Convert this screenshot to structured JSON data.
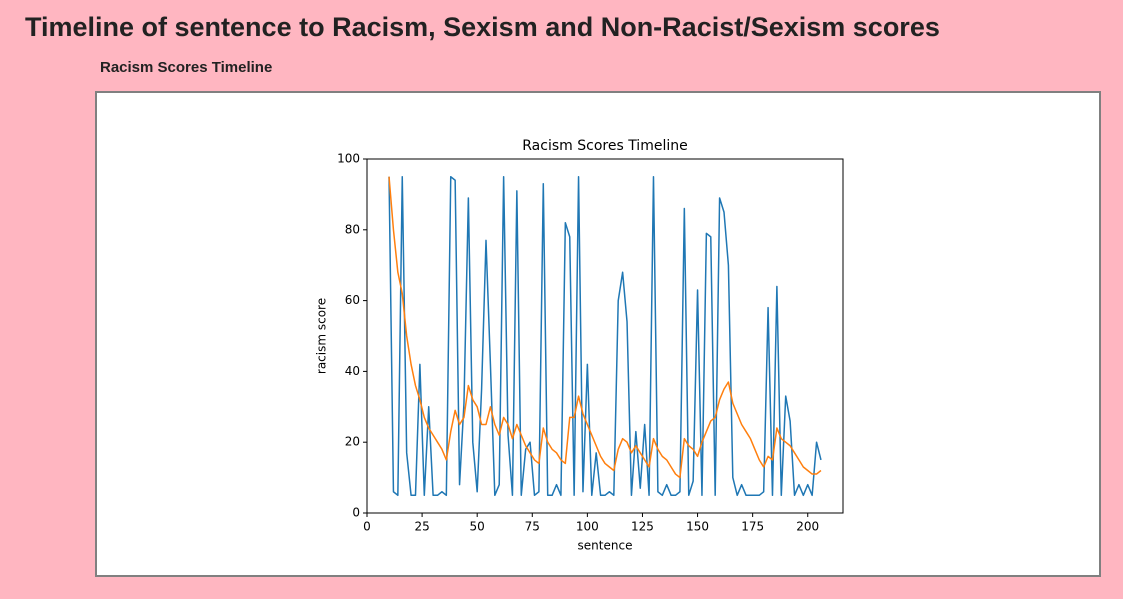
{
  "header": {
    "title": "Timeline of sentence to Racism, Sexism and Non-Racist/Sexism scores",
    "subtitle": "Racism Scores Timeline"
  },
  "chart_data": {
    "type": "line",
    "title": "Racism Scores Timeline",
    "x_label": "sentence",
    "y_label": "racism score",
    "x": [
      10,
      12,
      14,
      16,
      18,
      20,
      22,
      24,
      26,
      28,
      30,
      32,
      34,
      36,
      38,
      40,
      42,
      44,
      46,
      48,
      50,
      52,
      54,
      56,
      58,
      60,
      62,
      64,
      66,
      68,
      70,
      72,
      74,
      76,
      78,
      80,
      82,
      84,
      86,
      88,
      90,
      92,
      94,
      96,
      98,
      100,
      102,
      104,
      106,
      108,
      110,
      112,
      114,
      116,
      118,
      120,
      122,
      124,
      126,
      128,
      130,
      132,
      134,
      136,
      138,
      140,
      142,
      144,
      146,
      148,
      150,
      152,
      154,
      156,
      158,
      160,
      162,
      164,
      166,
      168,
      170,
      172,
      174,
      176,
      178,
      180,
      182,
      184,
      186,
      188,
      190,
      192,
      194,
      196,
      198,
      200,
      202,
      204,
      206
    ],
    "series": [
      {
        "color": "#1f77b4",
        "values": [
          95,
          6,
          5,
          95,
          17,
          5,
          5,
          42,
          5,
          30,
          5,
          5,
          6,
          5,
          95,
          94,
          8,
          31,
          89,
          20,
          6,
          35,
          77,
          42,
          5,
          8,
          95,
          22,
          5,
          91,
          5,
          18,
          20,
          5,
          6,
          93,
          5,
          5,
          8,
          5,
          82,
          78,
          5,
          95,
          6,
          42,
          5,
          17,
          5,
          5,
          6,
          5,
          60,
          68,
          54,
          5,
          23,
          7,
          25,
          5,
          95,
          6,
          5,
          8,
          5,
          5,
          6,
          86,
          5,
          9,
          63,
          5,
          79,
          78,
          5,
          89,
          85,
          70,
          10,
          5,
          8,
          5,
          5,
          5,
          5,
          6,
          58,
          5,
          64,
          5,
          33,
          26,
          5,
          8,
          5,
          8,
          5,
          20,
          15
        ]
      },
      {
        "color": "#ff7f0e",
        "values": [
          95,
          80,
          68,
          62,
          50,
          42,
          36,
          32,
          27,
          24,
          22,
          20,
          18,
          15,
          23,
          29,
          25,
          27,
          36,
          32,
          30,
          25,
          25,
          30,
          25,
          22,
          27,
          25,
          21,
          25,
          22,
          19,
          17,
          15,
          14,
          24,
          20,
          18,
          17,
          15,
          14,
          27,
          27,
          33,
          28,
          25,
          22,
          19,
          16,
          14,
          13,
          12,
          18,
          21,
          20,
          17,
          19,
          17,
          15,
          13,
          21,
          18,
          16,
          15,
          13,
          11,
          10,
          21,
          19,
          18,
          16,
          20,
          23,
          26,
          27,
          32,
          35,
          37,
          31,
          28,
          25,
          23,
          21,
          18,
          15,
          13,
          16,
          15,
          24,
          21,
          20,
          19,
          17,
          15,
          13,
          12,
          11,
          11,
          12
        ]
      }
    ],
    "xlim": [
      0,
      216
    ],
    "ylim": [
      0,
      100
    ],
    "xticks": [
      0,
      25,
      50,
      75,
      100,
      125,
      150,
      175,
      200
    ],
    "yticks": [
      0,
      20,
      40,
      60,
      80,
      100
    ]
  }
}
